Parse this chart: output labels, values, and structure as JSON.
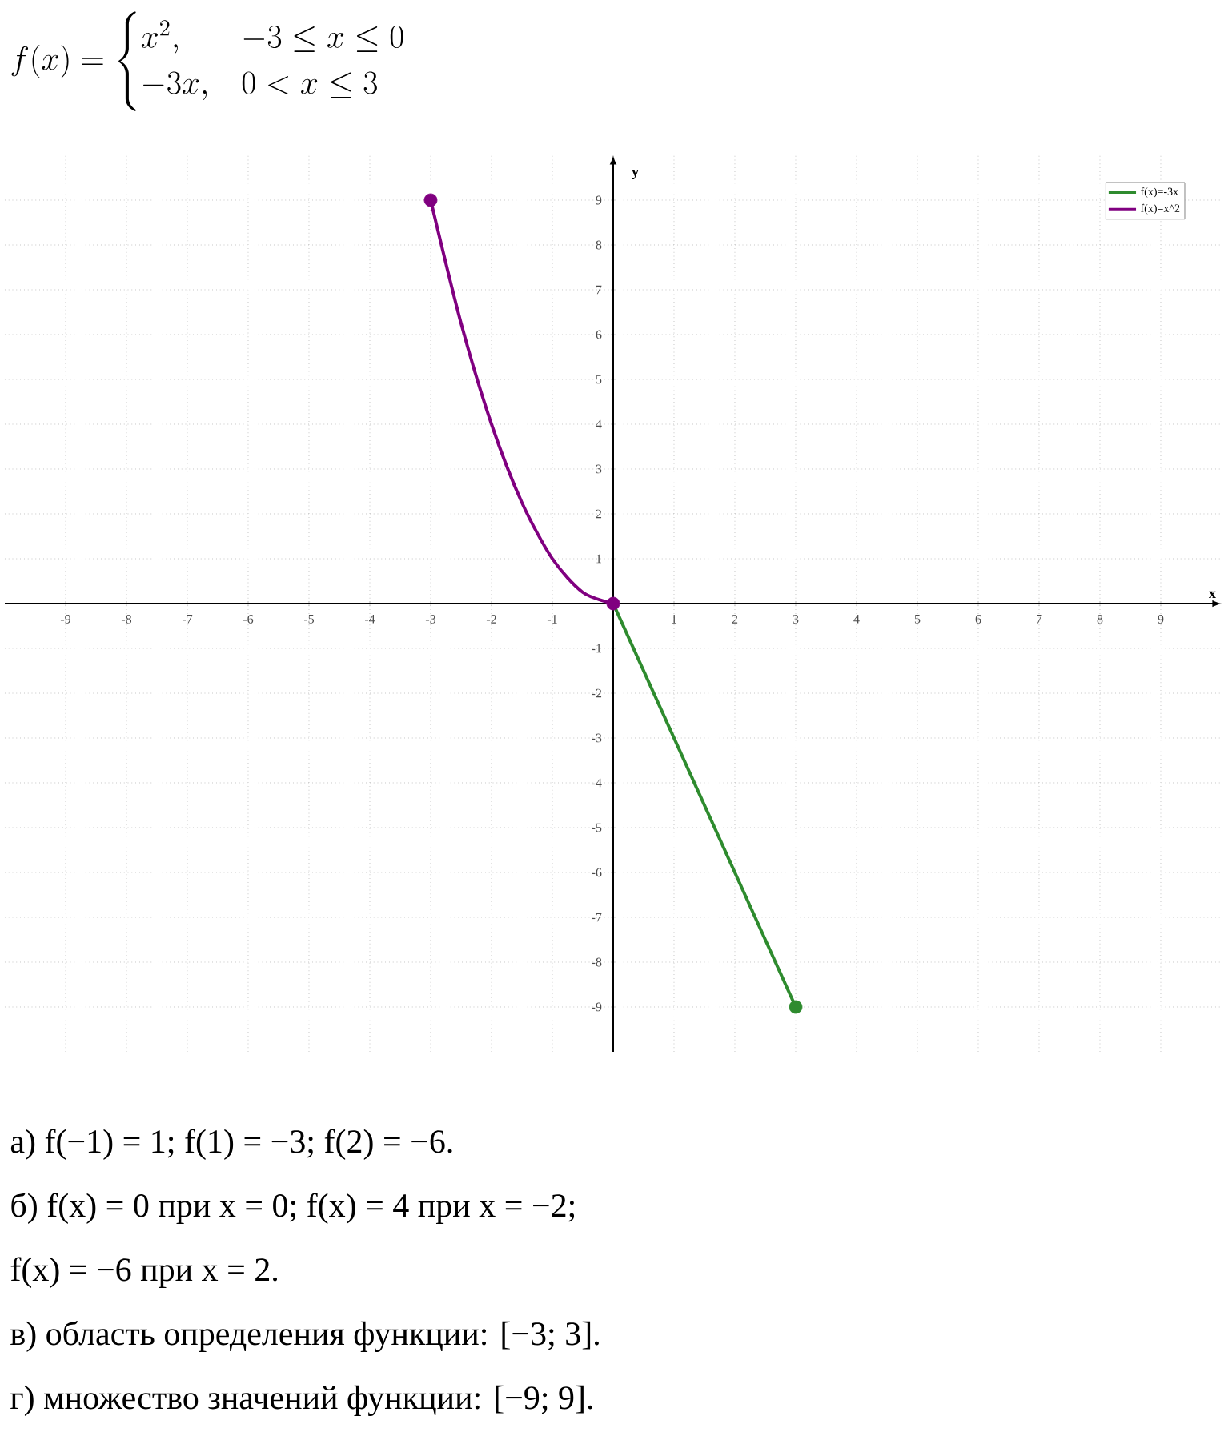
{
  "chart_data": {
    "type": "line",
    "title": "f(x) = \\begin{cases} x^2, & -3 \\le x \\le 0 \\\\ -3x, & 0 < x \\le 3 \\end{cases}",
    "xlabel": "x",
    "ylabel": "y",
    "xlim": [
      -10,
      10
    ],
    "ylim": [
      -10,
      10
    ],
    "xticks": [
      -9,
      -8,
      -7,
      -6,
      -5,
      -4,
      -3,
      -2,
      -1,
      1,
      2,
      3,
      4,
      5,
      6,
      7,
      8,
      9
    ],
    "yticks": [
      -9,
      -8,
      -7,
      -6,
      -5,
      -4,
      -3,
      -2,
      -1,
      1,
      2,
      3,
      4,
      5,
      6,
      7,
      8,
      9
    ],
    "grid": true,
    "legend": "top right",
    "series": [
      {
        "name": "f(x)=-3x",
        "color": "#2e8b2e",
        "x": [
          0,
          3
        ],
        "values": [
          0,
          -9
        ]
      },
      {
        "name": "f(x)=x^2",
        "color": "#800080",
        "x": [
          -3,
          -2.5,
          -2,
          -1.5,
          -1,
          -0.5,
          0
        ],
        "values": [
          9,
          6.25,
          4,
          2.25,
          1,
          0.25,
          0
        ]
      },
      {
        "type": "scatter",
        "marker": "circle",
        "color": "#800080",
        "x": [
          -3,
          0
        ],
        "values": [
          9,
          0
        ]
      },
      {
        "type": "scatter",
        "marker": "circle",
        "color": "#2e8b2e",
        "x": [
          3
        ],
        "values": [
          -9
        ]
      }
    ],
    "annotations": [
      "а) f(−1) = 1;   f(1) = −3;   f(2) = −6.",
      "б) f(x) = 0 при x = 0;   f(x) = 4 при x = −2;",
      "f(x) = −6 при x = 2.",
      "в) область определения функции: [−3; 3].",
      "г) множество значений функции: [−9; 9]."
    ]
  }
}
